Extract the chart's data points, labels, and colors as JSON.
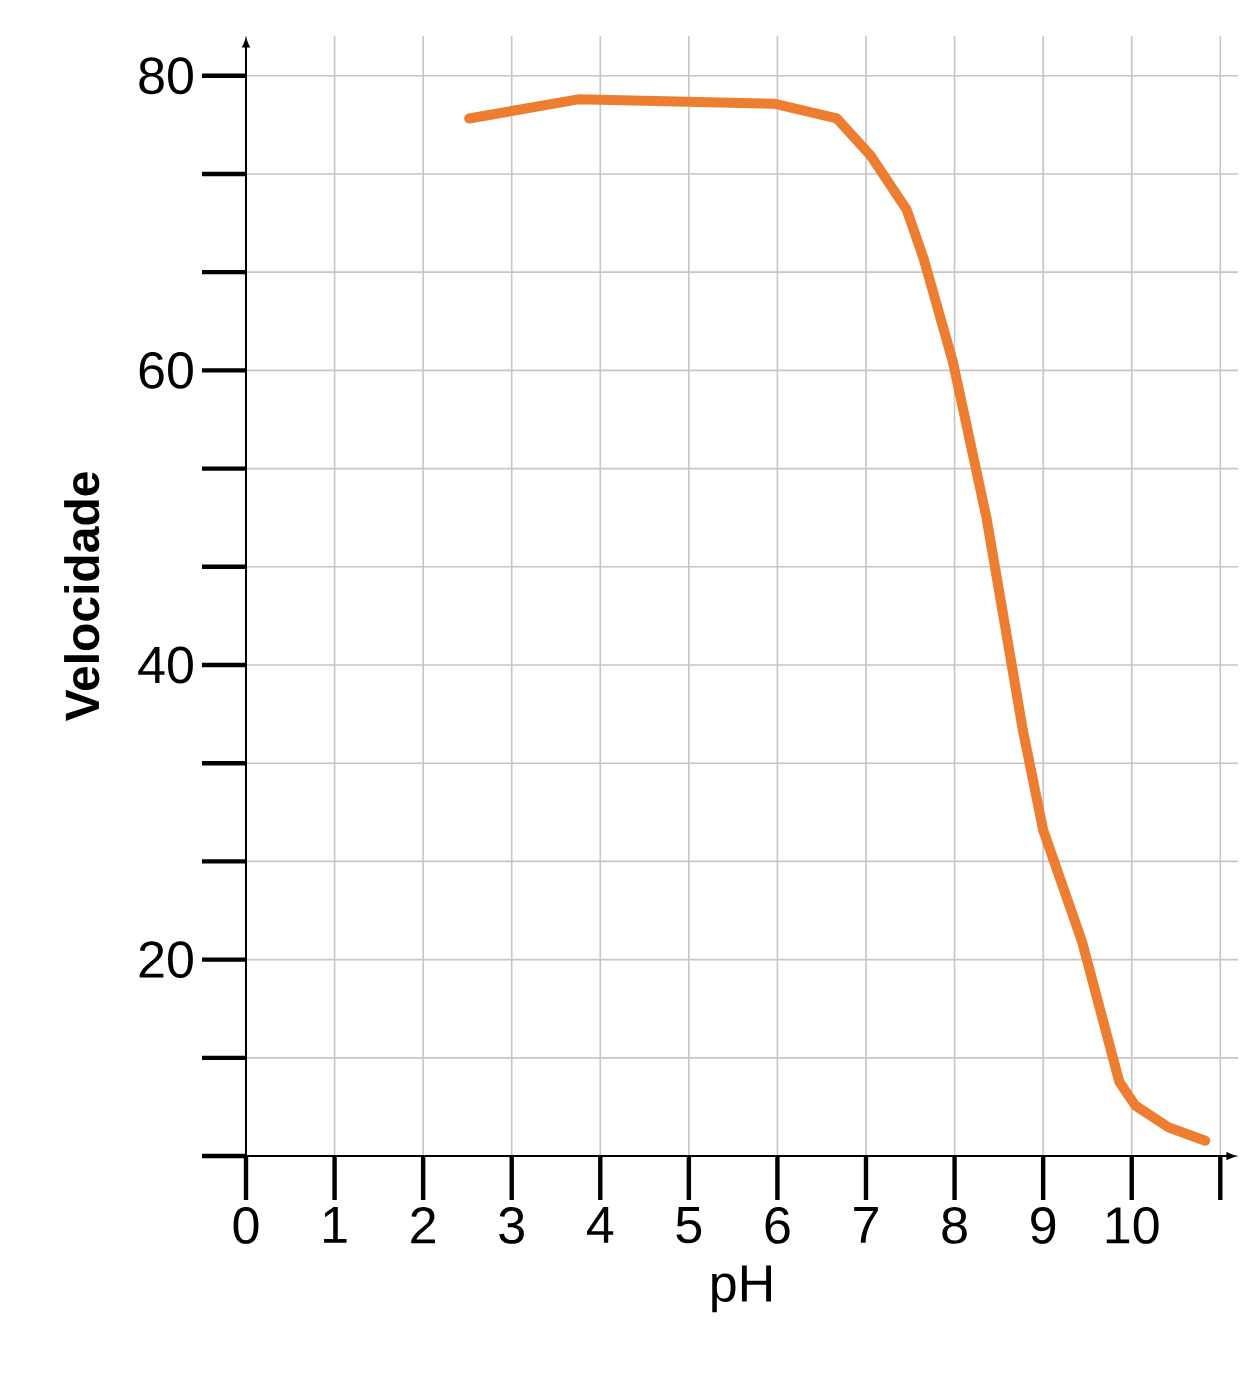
{
  "chart_data": {
    "type": "line",
    "xlabel": "pH",
    "ylabel": "Velocidade",
    "xlim": [
      0,
      11.2
    ],
    "ylim": [
      6.67,
      82.7
    ],
    "xticks": [
      0,
      1,
      2,
      3,
      4,
      5,
      6,
      7,
      8,
      9,
      10,
      {
        "value": 11,
        "label": null
      }
    ],
    "yticks": [
      {
        "value": 6.67,
        "label": null
      },
      {
        "value": 13.33,
        "label": null
      },
      20,
      {
        "value": 26.67,
        "label": null
      },
      {
        "value": 33.33,
        "label": null
      },
      40,
      {
        "value": 46.67,
        "label": null
      },
      {
        "value": 53.33,
        "label": null
      },
      60,
      {
        "value": 66.67,
        "label": null
      },
      {
        "value": 73.33,
        "label": null
      },
      80
    ],
    "grid": true,
    "marker": "none",
    "line_style": "solid",
    "series": [
      {
        "color": "#ed7d31",
        "x": [
          2.52,
          3.75,
          5.96,
          6.67,
          7.05,
          7.46,
          7.65,
          7.98,
          8.36,
          8.58,
          8.77,
          9.0,
          9.44,
          9.86,
          10.04,
          10.42,
          10.83
        ],
        "values": [
          77.1,
          78.4,
          78.1,
          77.1,
          74.6,
          70.9,
          67.6,
          60.6,
          50.0,
          42.3,
          35.6,
          28.8,
          21.2,
          11.7,
          10.1,
          8.6,
          7.7
        ]
      }
    ]
  }
}
